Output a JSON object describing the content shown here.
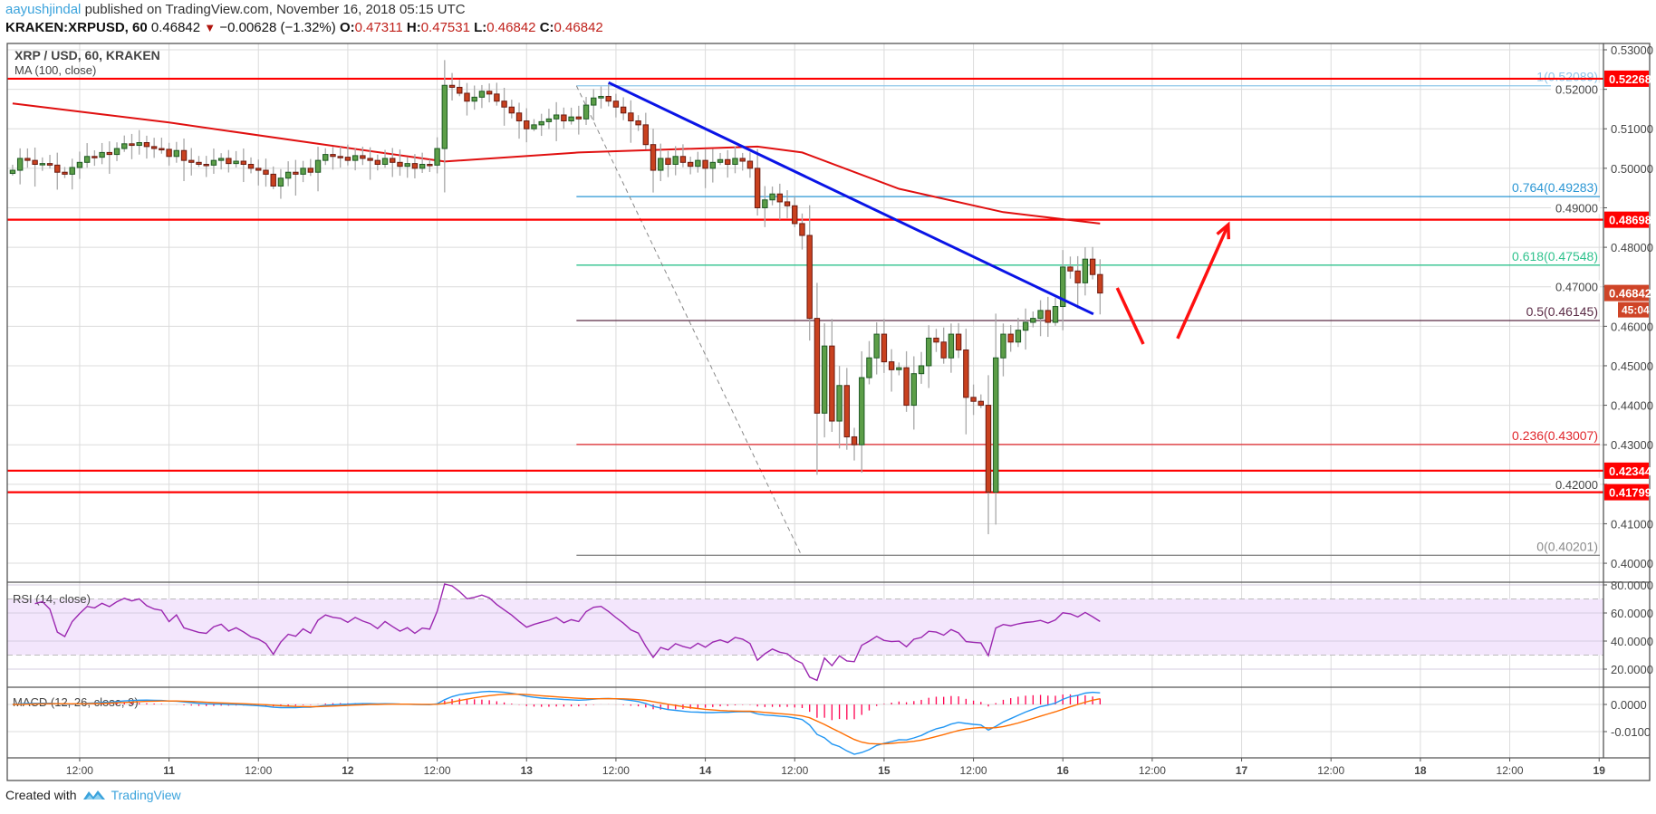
{
  "header": {
    "author": "aayushjindal",
    "published": " published on TradingView.com, November 16, 2018 05:15 UTC",
    "symbol": "KRAKEN:XRPUSD, 60",
    "last": "0.46842",
    "change": "−0.00628 (−1.32%)",
    "o_label": "O:",
    "o": "0.47311",
    "h_label": "H:",
    "h": "0.47531",
    "l_label": "L:",
    "l": "0.46842",
    "c_label": "C:",
    "c": "0.46842"
  },
  "footer": {
    "created": "Created with",
    "brand": "TradingView"
  },
  "colors": {
    "up": "#5c9e48",
    "up_border": "#1d5a22",
    "down": "#c9411f",
    "down_border": "#6b1a10",
    "wick": "#a8a8a8",
    "ma": "#e01010",
    "level": "#ff0000",
    "trend": "#0a14e6",
    "arrow": "#ff1010",
    "rsi": "#9b27b0",
    "macd": "#2196f3",
    "signal": "#ff6d00",
    "hist": "#ff0050",
    "last_badge": "#cf4427"
  },
  "chart_data": {
    "type": "candlestick",
    "title": "XRP / USD, 60, KRAKEN",
    "ma_label": "MA (100, close)",
    "interval_hours": 1,
    "first_candle_hours_from_nov11": -21,
    "closes": [
      0.4995,
      0.5025,
      0.502,
      0.501,
      0.5012,
      0.5008,
      0.499,
      0.4985,
      0.5002,
      0.5015,
      0.503,
      0.5028,
      0.504,
      0.5035,
      0.505,
      0.5062,
      0.5058,
      0.5065,
      0.5055,
      0.505,
      0.5048,
      0.503,
      0.5045,
      0.502,
      0.5015,
      0.501,
      0.5008,
      0.502,
      0.5025,
      0.5012,
      0.5018,
      0.501,
      0.5,
      0.4995,
      0.4985,
      0.4955,
      0.4975,
      0.499,
      0.4985,
      0.5,
      0.499,
      0.502,
      0.5035,
      0.503,
      0.5028,
      0.502,
      0.5032,
      0.5025,
      0.502,
      0.501,
      0.5025,
      0.5015,
      0.5005,
      0.5012,
      0.5,
      0.501,
      0.5008,
      0.505,
      0.521,
      0.5205,
      0.519,
      0.517,
      0.518,
      0.5195,
      0.5188,
      0.517,
      0.5155,
      0.514,
      0.512,
      0.51,
      0.511,
      0.5118,
      0.5125,
      0.5135,
      0.512,
      0.513,
      0.5125,
      0.516,
      0.5178,
      0.5182,
      0.517,
      0.5155,
      0.514,
      0.512,
      0.511,
      0.506,
      0.4995,
      0.5025,
      0.501,
      0.503,
      0.5015,
      0.5005,
      0.502,
      0.5,
      0.5015,
      0.5022,
      0.501,
      0.5025,
      0.5018,
      0.5,
      0.49,
      0.492,
      0.4935,
      0.4915,
      0.4905,
      0.486,
      0.483,
      0.462,
      0.438,
      0.455,
      0.436,
      0.445,
      0.432,
      0.43,
      0.447,
      0.452,
      0.458,
      0.451,
      0.449,
      0.4495,
      0.44,
      0.448,
      0.45,
      0.457,
      0.456,
      0.452,
      0.458,
      0.454,
      0.442,
      0.441,
      0.44,
      0.418,
      0.452,
      0.458,
      0.456,
      0.459,
      0.461,
      0.462,
      0.464,
      0.461,
      0.465,
      0.475,
      0.474,
      0.471,
      0.477,
      0.4731,
      0.46842
    ],
    "ma100": [
      [
        -21,
        0.5164
      ],
      [
        0,
        0.5116
      ],
      [
        20,
        0.5062
      ],
      [
        37,
        0.5017
      ],
      [
        55,
        0.504
      ],
      [
        79,
        0.5055
      ],
      [
        85,
        0.504
      ],
      [
        98,
        0.4948
      ],
      [
        112,
        0.4889
      ],
      [
        125,
        0.486
      ]
    ],
    "price_axis": {
      "ylim": [
        0.3965,
        0.5316
      ],
      "ticks": [
        "0.53000",
        "0.52000",
        "0.51000",
        "0.50000",
        "0.49000",
        "0.48000",
        "0.47000",
        "0.46000",
        "0.45000",
        "0.44000",
        "0.43000",
        "0.42000",
        "0.41000",
        "0.40000"
      ]
    },
    "time_axis": {
      "labels": [
        "12:00",
        "11",
        "12:00",
        "12",
        "12:00",
        "13",
        "12:00",
        "14",
        "12:00",
        "15",
        "12:00",
        "16",
        "12:00",
        "17",
        "12:00",
        "18",
        "12:00",
        "19"
      ],
      "first_label_hours_from_nov11": -12,
      "step_hours": 12
    },
    "horizontal_levels": [
      {
        "value": 0.52268,
        "label": "0.52268"
      },
      {
        "value": 0.48698,
        "label": "0.48698"
      },
      {
        "value": 0.42344,
        "label": "0.42344"
      },
      {
        "value": 0.41799,
        "label": "0.41799"
      }
    ],
    "last_price": {
      "value": 0.46842,
      "label": "0.46842",
      "countdown": "45:04"
    },
    "fibonacci": {
      "start_hours": 54.7,
      "levels": [
        {
          "ratio": "1",
          "value": 0.52089,
          "label": "1(0.52089)",
          "color": "#8ec6ea"
        },
        {
          "ratio": "0.764",
          "value": 0.49283,
          "label": "0.764(0.49283)",
          "color": "#2a96d4"
        },
        {
          "ratio": "0.618",
          "value": 0.47548,
          "label": "0.618(0.47548)",
          "color": "#2fc28d"
        },
        {
          "ratio": "0.5",
          "value": 0.46145,
          "label": "0.5(0.46145)",
          "color": "#5a2a45"
        },
        {
          "ratio": "0.236",
          "value": 0.43007,
          "label": "0.236(0.43007)",
          "color": "#e0262b"
        },
        {
          "ratio": "0",
          "value": 0.40201,
          "label": "0(0.40201)",
          "color": "#8a8a8a"
        }
      ],
      "diagonal": [
        [
          54.7,
          0.52089
        ],
        [
          84.9,
          0.40201
        ]
      ]
    },
    "trendline": [
      [
        59,
        0.5217
      ],
      [
        124.1,
        0.4631
      ]
    ],
    "arrows": [
      {
        "from": [
          127.3,
          0.4697
        ],
        "to": [
          130.8,
          0.4555
        ],
        "direction": "down"
      },
      {
        "from": [
          135.4,
          0.4569
        ],
        "to": [
          142.2,
          0.4857
        ],
        "direction": "up"
      }
    ],
    "rsi": {
      "label": "RSI (14, close)",
      "period": 14,
      "upper": 70,
      "lower": 30,
      "ticks": [
        "80.0000",
        "60.0000",
        "40.0000",
        "20.0000"
      ]
    },
    "macd": {
      "label": "MACD (12, 26, close, 9)",
      "fast": 12,
      "slow": 26,
      "signal": 9,
      "ticks": [
        "0.0000",
        "-0.0100"
      ]
    }
  }
}
